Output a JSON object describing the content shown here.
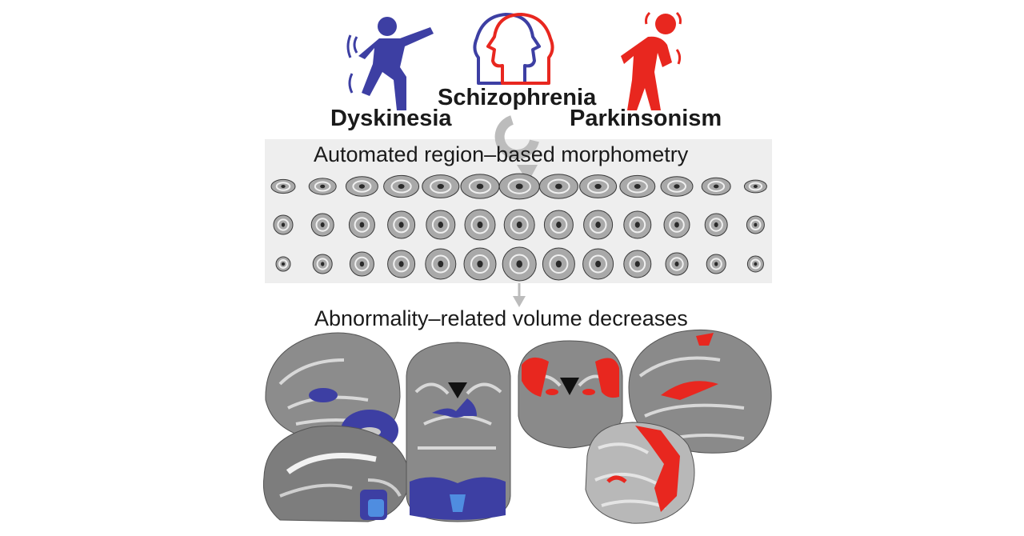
{
  "labels": {
    "dyskinesia": "Dyskinesia",
    "schizophrenia": "Schizophrenia",
    "parkinsonism": "Parkinsonism"
  },
  "headings": {
    "morphometry": "Automated region–based morphometry",
    "volume": "Abnormality–related volume decreases"
  },
  "icons": {
    "dyskinesia": "person-tremor-icon",
    "schizophrenia": "overlapping-heads-icon",
    "parkinsonism": "person-stooped-icon"
  },
  "colors": {
    "dyskinesia": "#3d3fa3",
    "parkinsonism": "#e8271f",
    "panel": "#eeeeee"
  },
  "slice_rows": 3,
  "slice_columns": 13
}
